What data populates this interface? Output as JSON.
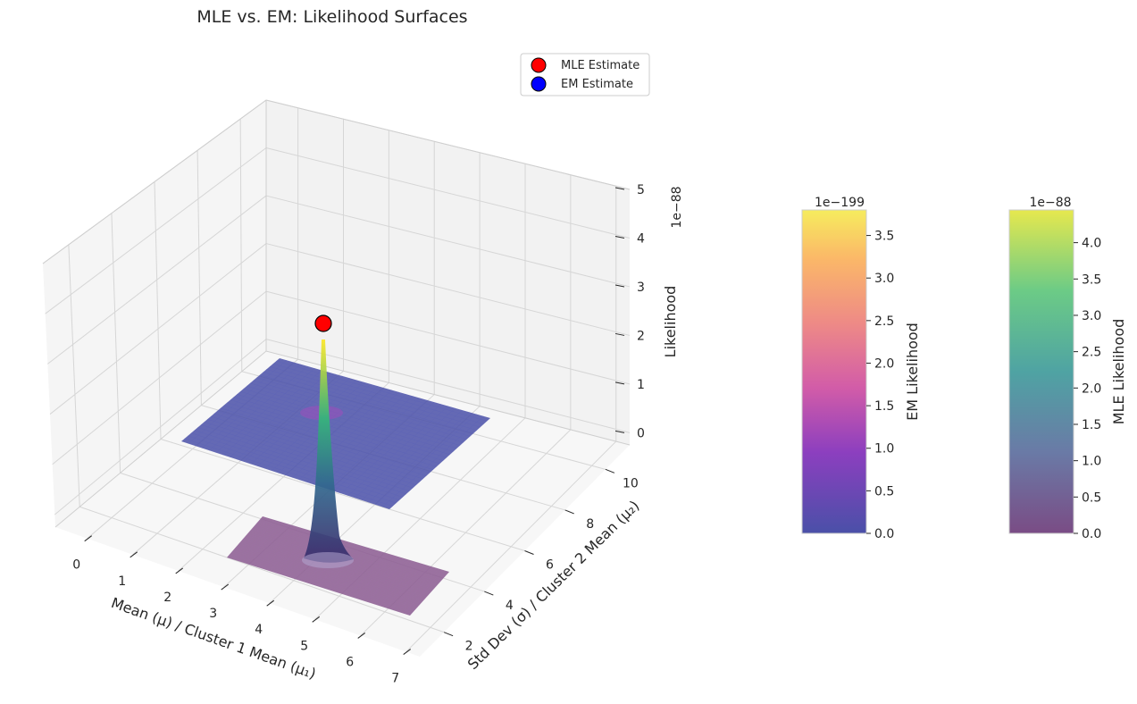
{
  "chart_data": [
    {
      "type": "surface3d",
      "title": "MLE vs. EM: Likelihood Surfaces",
      "xlabel": "Mean (μ) / Cluster 1 Mean (μ₁)",
      "ylabel": "Std Dev (σ) / Cluster 2 Mean (μ₂)",
      "zlabel": "Likelihood",
      "x_ticks": [
        0,
        1,
        2,
        3,
        4,
        5,
        6,
        7
      ],
      "y_ticks": [
        2,
        4,
        6,
        8,
        10
      ],
      "z_ticks": [
        0,
        1,
        2,
        3,
        4,
        5
      ],
      "z_offset": "1e−88",
      "xlim": [
        -0.7,
        7.3
      ],
      "ylim": [
        0.8,
        11.2
      ],
      "zlim": [
        -0.25,
        5.0
      ],
      "series": [
        {
          "name": "MLE Likelihood surface",
          "colormap": "viridis",
          "x_range": [
            3.0,
            7.0
          ],
          "y_range": [
            1.0,
            4.0
          ],
          "peak": {
            "x": 4.55,
            "y": 2.6,
            "z": 4.45
          }
        },
        {
          "name": "EM Likelihood surface",
          "colormap": "plasma",
          "x_range": [
            1.0,
            7.0
          ],
          "y_range": [
            1.0,
            10.0
          ],
          "z": 0.0
        }
      ],
      "points": [
        {
          "name": "MLE Estimate",
          "x": 4.55,
          "y": 2.6,
          "z": 4.45,
          "color": "#ff0000"
        },
        {
          "name": "EM Estimate",
          "x": 4.55,
          "y": 2.6,
          "z": 0.0,
          "color": "#0000ff"
        }
      ],
      "legend": {
        "position": "top-right",
        "entries": [
          {
            "label": "MLE Estimate",
            "color": "#ff0000"
          },
          {
            "label": "EM Estimate",
            "color": "#0000ff"
          }
        ]
      }
    },
    {
      "type": "colorbar",
      "label": "EM Likelihood",
      "colormap": "plasma",
      "offset": "1e−199",
      "range": [
        0.0,
        3.8
      ],
      "ticks": [
        "0.0",
        "0.5",
        "1.0",
        "1.5",
        "2.0",
        "2.5",
        "3.0",
        "3.5"
      ]
    },
    {
      "type": "colorbar",
      "label": "MLE Likelihood",
      "colormap": "viridis",
      "offset": "1e−88",
      "range": [
        0.0,
        4.45
      ],
      "ticks": [
        "0.0",
        "0.5",
        "1.0",
        "1.5",
        "2.0",
        "2.5",
        "3.0",
        "3.5",
        "4.0"
      ]
    }
  ]
}
